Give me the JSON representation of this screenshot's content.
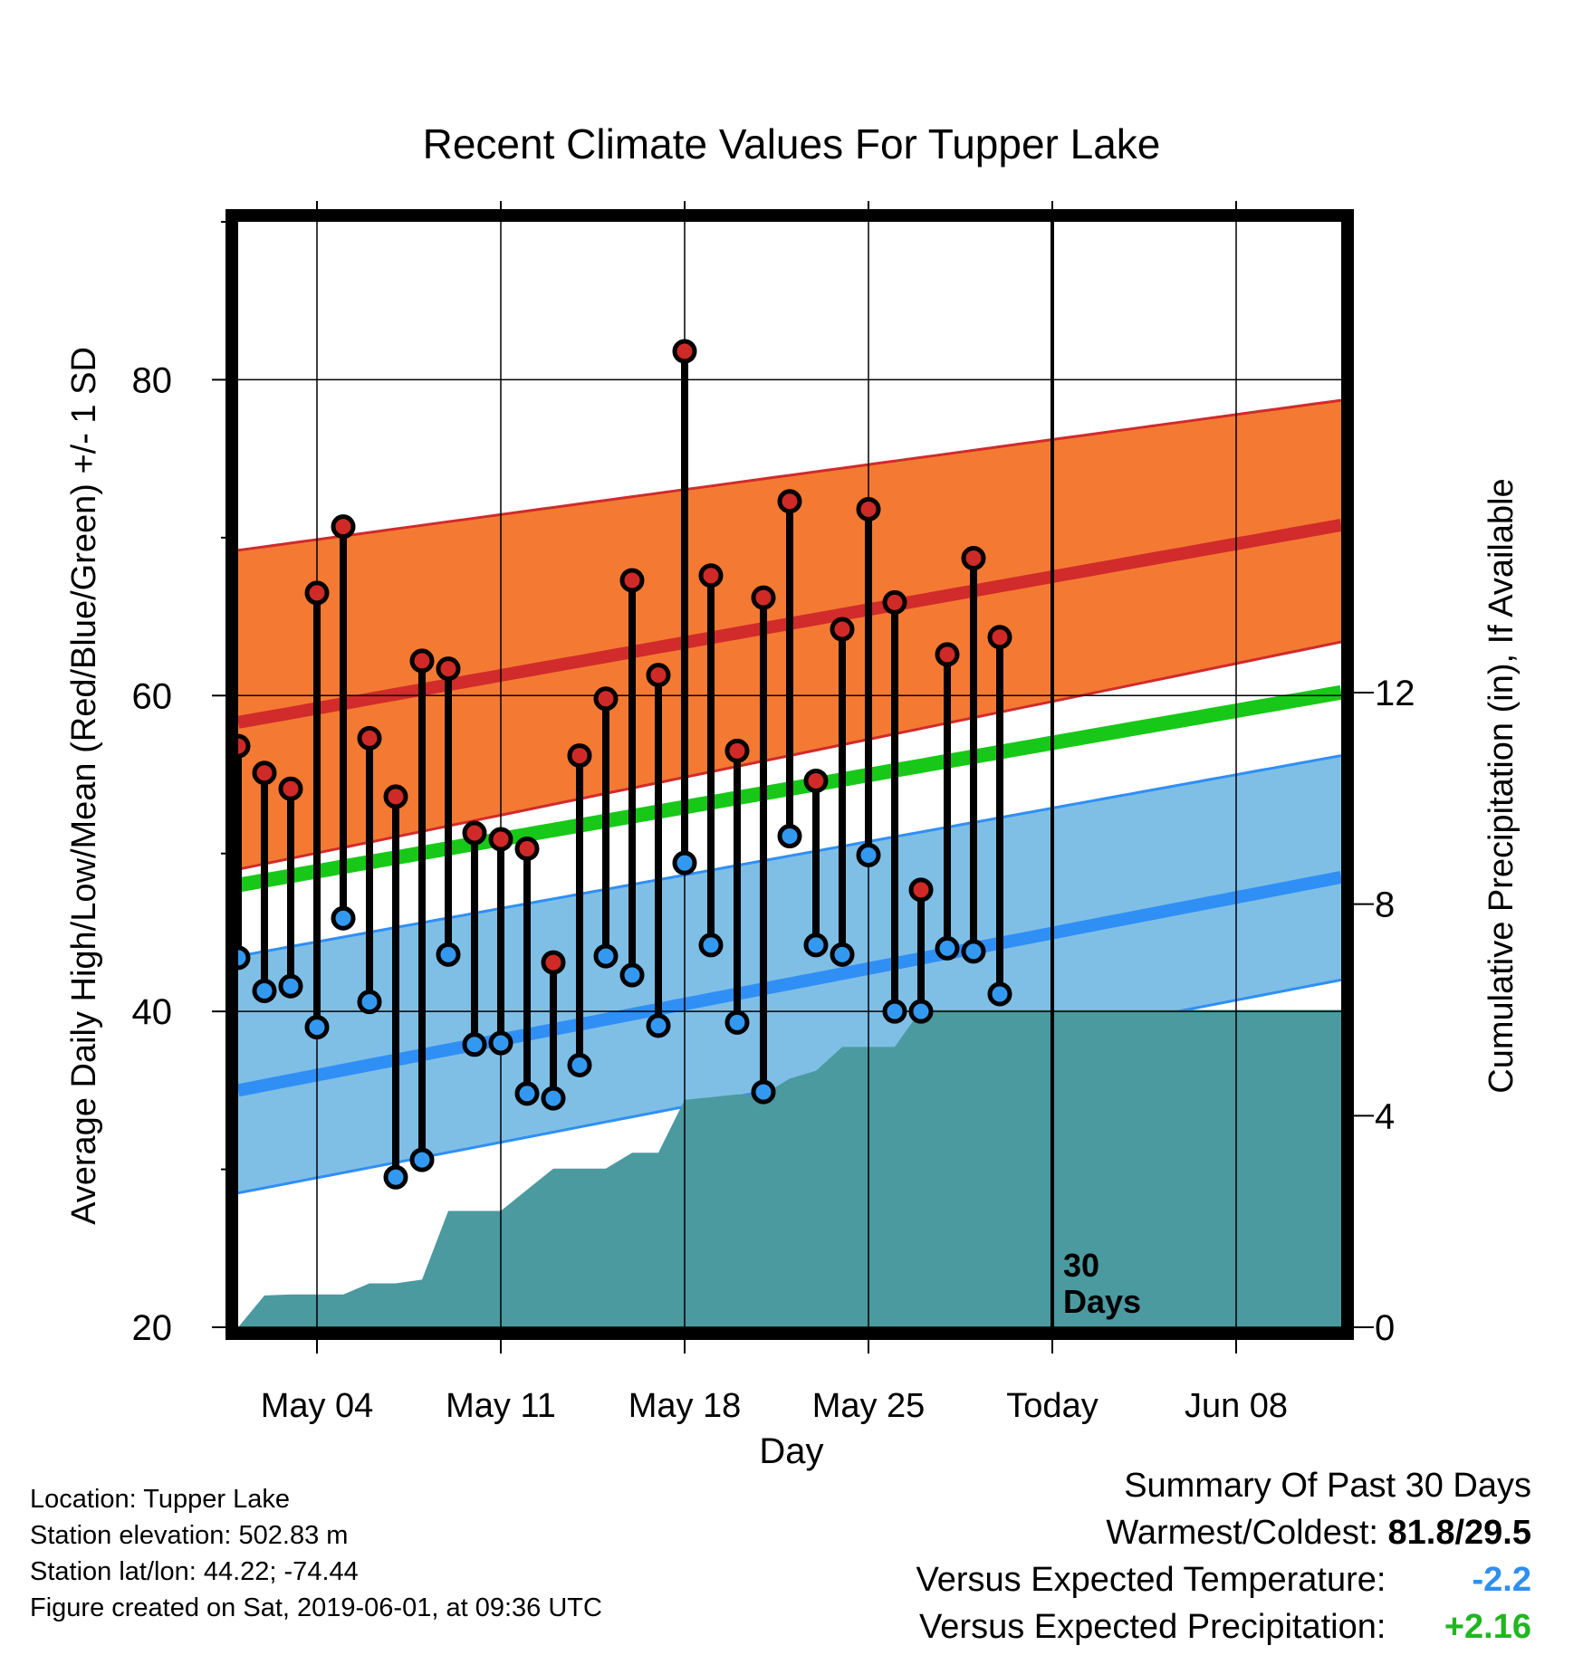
{
  "chart_data": {
    "type": "line",
    "title": "Recent Climate Values For Tupper Lake",
    "xlabel": "Day",
    "ylabel_left": "Average Daily High/Low/Mean (Red/Blue/Green) +/- 1 SD",
    "ylabel_right": "Cumulative Precipitation (in), If Available",
    "xlim": [
      1,
      43
    ],
    "ylim_left": [
      20,
      90
    ],
    "ylim_right": [
      0,
      20.9
    ],
    "x_ticks": [
      {
        "x": 4,
        "label": "May 04"
      },
      {
        "x": 11,
        "label": "May 11"
      },
      {
        "x": 18,
        "label": "May 18"
      },
      {
        "x": 25,
        "label": "May 25"
      },
      {
        "x": 32,
        "label": "Today"
      },
      {
        "x": 39,
        "label": "Jun 08"
      }
    ],
    "y_ticks_left": [
      20,
      40,
      60,
      80
    ],
    "y_ticks_right": [
      0,
      4,
      8,
      12
    ],
    "grid": true,
    "today_x": 32,
    "today_label_line1": "30",
    "today_label_line2": "Days",
    "colors": {
      "high_band": "#f47a33",
      "high_line": "#d12b2b",
      "mean_line": "#18c818",
      "low_band": "#7fbfe6",
      "low_line": "#2f8ff5",
      "precip": "#4a9aa0",
      "high_marker": "#cf2a27",
      "low_marker": "#3399f0"
    },
    "normals": {
      "x": [
        1,
        43
      ],
      "high_mean": [
        58.3,
        70.8
      ],
      "high_upper": [
        69.2,
        78.7
      ],
      "high_lower": [
        49.0,
        63.4
      ],
      "mean": [
        48.0,
        60.2
      ],
      "low_mean": [
        35.0,
        48.5
      ],
      "low_upper": [
        43.5,
        56.2
      ],
      "low_lower": [
        28.5,
        42.0
      ]
    },
    "series": [
      {
        "name": "High",
        "x": [
          1,
          2,
          3,
          4,
          5,
          6,
          7,
          8,
          9,
          10,
          11,
          12,
          13,
          14,
          15,
          16,
          17,
          18,
          19,
          20,
          21,
          22,
          23,
          24,
          25,
          26,
          27,
          28,
          29,
          30,
          31
        ],
        "values": [
          56.8,
          55.1,
          54.1,
          66.5,
          70.7,
          57.3,
          53.6,
          62.2,
          61.7,
          51.3,
          50.9,
          50.3,
          43.1,
          56.2,
          59.8,
          67.3,
          61.3,
          81.8,
          67.6,
          56.5,
          66.2,
          72.3,
          54.6,
          64.2,
          71.8,
          65.9,
          47.7,
          62.6,
          68.7,
          63.7,
          null
        ],
        "color": "#cf2a27"
      },
      {
        "name": "Low",
        "x": [
          1,
          2,
          3,
          4,
          5,
          6,
          7,
          8,
          9,
          10,
          11,
          12,
          13,
          14,
          15,
          16,
          17,
          18,
          19,
          20,
          21,
          22,
          23,
          24,
          25,
          26,
          27,
          28,
          29,
          30,
          31
        ],
        "values": [
          43.4,
          41.3,
          41.6,
          39.0,
          45.9,
          40.6,
          29.5,
          30.6,
          43.6,
          37.9,
          38.0,
          34.8,
          34.5,
          36.6,
          43.5,
          42.3,
          39.1,
          49.4,
          44.2,
          39.3,
          34.9,
          51.1,
          44.2,
          43.6,
          49.9,
          40.0,
          40.0,
          44.0,
          43.8,
          41.1,
          null
        ],
        "color": "#3399f0"
      },
      {
        "name": "Cumulative Precipitation",
        "x": [
          1,
          2,
          3,
          4,
          5,
          6,
          7,
          8,
          9,
          10,
          11,
          12,
          13,
          14,
          15,
          16,
          17,
          18,
          19,
          20,
          21,
          22,
          23,
          24,
          25,
          26,
          27,
          28,
          29,
          30,
          31,
          32,
          43
        ],
        "values": [
          0,
          0.6,
          0.62,
          0.62,
          0.62,
          0.83,
          0.83,
          0.9,
          2.2,
          2.2,
          2.2,
          2.6,
          3.0,
          3.0,
          3.0,
          3.3,
          3.3,
          4.3,
          4.35,
          4.4,
          4.4,
          4.7,
          4.85,
          5.3,
          5.3,
          5.3,
          6.0,
          6.0,
          6.0,
          6.0,
          6.0,
          6.0,
          6.0
        ],
        "color": "#4a9aa0"
      }
    ]
  },
  "info": {
    "location": "Location: Tupper Lake",
    "elevation": "Station elevation: 502.83 m",
    "latlon": "Station lat/lon: 44.22; -74.44",
    "created": "Figure created on Sat, 2019-06-01, at 09:36 UTC"
  },
  "summary": {
    "title": "Summary Of Past 30 Days",
    "warmest_label": "Warmest/Coldest:",
    "warmest_value": "81.8/29.5",
    "temp_label": "Versus Expected Temperature:",
    "temp_value": "-2.2",
    "temp_color": "#2e8fef",
    "precip_label": "Versus Expected Precipitation:",
    "precip_value": "+2.16",
    "precip_color": "#22b522"
  }
}
